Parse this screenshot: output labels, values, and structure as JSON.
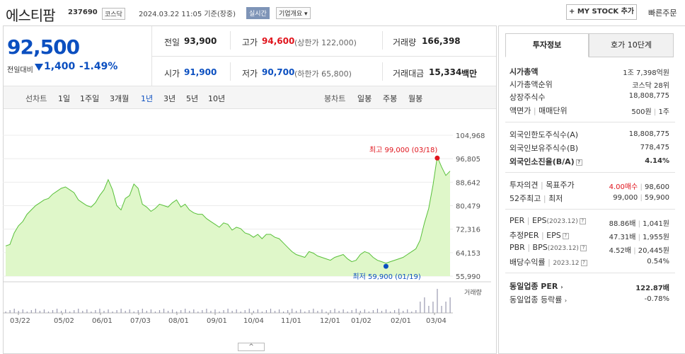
{
  "header": {
    "company": "에스티팜",
    "code": "237690",
    "market": "코스닥",
    "datetime": "2024.03.22 11:05 기준(장중)",
    "realtime": "실시간",
    "company_info": "기업개요 ▾",
    "my_stock": "+ MY STOCK 추가",
    "quick_order": "빠른주문"
  },
  "price": {
    "current": "92,500",
    "change_label": "전일대비",
    "change_value": "1,400",
    "change_pct": "-1.49%",
    "prev_close_label": "전일",
    "prev_close": "93,900",
    "high_label": "고가",
    "high": "94,600",
    "upper_limit": "(상한가 122,000)",
    "volume_label": "거래량",
    "volume": "166,398",
    "open_label": "시가",
    "open": "91,900",
    "low_label": "저가",
    "low": "90,700",
    "lower_limit": "(하한가 65,800)",
    "amount_label": "거래대금",
    "amount": "15,334",
    "amount_unit": "백만"
  },
  "periods": {
    "line_label": "선차트",
    "line_items": [
      "1일",
      "1주일",
      "3개월",
      "1년",
      "3년",
      "5년",
      "10년"
    ],
    "selected": "1년",
    "candle_label": "봉차트",
    "candle_items": [
      "일봉",
      "주봉",
      "월봉"
    ]
  },
  "chart": {
    "y_ticks": [
      "104,968",
      "96,805",
      "88,642",
      "80,479",
      "72,316",
      "64,153",
      "55,990"
    ],
    "x_ticks": [
      "03/22",
      "05/02",
      "06/01",
      "07/03",
      "08/01",
      "09/01",
      "10/04",
      "11/01",
      "12/01",
      "01/02",
      "02/01",
      "03/04"
    ],
    "high_label": "최고 99,000 (03/18)",
    "low_label": "최저 59,900 (01/19)",
    "volume_label": "거래량",
    "toggle": "^"
  },
  "chart_data": {
    "type": "area",
    "y_range": [
      55990,
      104968
    ],
    "series": [
      {
        "values": [
          66500,
          67000,
          71000,
          73500,
          75000,
          77500,
          79000,
          80500,
          81500,
          82500,
          83000,
          84500,
          85500,
          86500,
          87000,
          86000,
          85000,
          82500,
          81500,
          80500,
          80000,
          81500,
          84000,
          86000,
          89500,
          86000,
          80500,
          79000,
          83000,
          84000,
          88000,
          86500,
          81000,
          80000,
          78500,
          79500,
          81000,
          80500,
          80000,
          81500,
          82500,
          80000,
          81000,
          79000,
          78000,
          77500,
          77500,
          76000,
          75000,
          74000,
          73000,
          74500,
          74000,
          72000,
          73000,
          72500,
          71000,
          70500,
          69500,
          70500,
          69000,
          70500,
          70500,
          69500,
          69000,
          67500,
          66000,
          64500,
          63500,
          63000,
          62500,
          64500,
          64000,
          63000,
          62500,
          62000,
          61500,
          62500,
          63000,
          63500,
          62000,
          61000,
          61500,
          63500,
          64500,
          64000,
          62500,
          61500,
          61000,
          60500,
          61000,
          61500,
          62000,
          62500,
          63500,
          64500,
          65500,
          68500,
          74500,
          79500,
          87500,
          97500,
          94000,
          91000,
          92500
        ]
      }
    ],
    "high": {
      "value": 99000,
      "date": "03/18"
    },
    "low": {
      "value": 59900,
      "date": "01/19"
    }
  },
  "invest_panel": {
    "tabs": [
      "투자정보",
      "호가 10단계"
    ],
    "market_cap_label": "시가총액",
    "market_cap_value": "1조 7,398억원",
    "cap_rank_label": "시가총액순위",
    "cap_rank_value": "코스닥 28위",
    "shares_label": "상장주식수",
    "shares_value": "18,808,775",
    "par_label_a": "액면가",
    "par_label_b": "매매단위",
    "par_value_a": "500원",
    "par_value_b": "1주",
    "foreign_limit_label": "외국인한도주식수(A)",
    "foreign_limit_value": "18,808,775",
    "foreign_hold_label": "외국인보유주식수(B)",
    "foreign_hold_value": "778,475",
    "foreign_ratio_label": "외국인소진율(B/A)",
    "foreign_ratio_value": "4.14%",
    "opinion_label_a": "투자의견",
    "opinion_label_b": "목표주가",
    "opinion_value_a": "4.00매수",
    "opinion_value_b": "98,600",
    "week52_label_a": "52주최고",
    "week52_label_b": "최저",
    "week52_value_a": "99,000",
    "week52_value_b": "59,900",
    "per_label_a": "PER",
    "per_label_b": "EPS",
    "per_period": "(2023.12)",
    "per_value_a": "88.86배",
    "per_value_b": "1,041원",
    "fper_label_a": "추정PER",
    "fper_label_b": "EPS",
    "fper_value_a": "47.31배",
    "fper_value_b": "1,955원",
    "pbr_label_a": "PBR",
    "pbr_label_b": "BPS",
    "pbr_period": "(2023.12)",
    "pbr_value_a": "4.52배",
    "pbr_value_b": "20,445원",
    "div_label": "배당수익률",
    "div_period": "2023.12",
    "div_value": "0.54%",
    "ind_per_label": "동일업종 PER",
    "ind_per_value": "122.87배",
    "ind_rate_label": "동일업종 등락률",
    "ind_rate_value": "-0.78%"
  }
}
